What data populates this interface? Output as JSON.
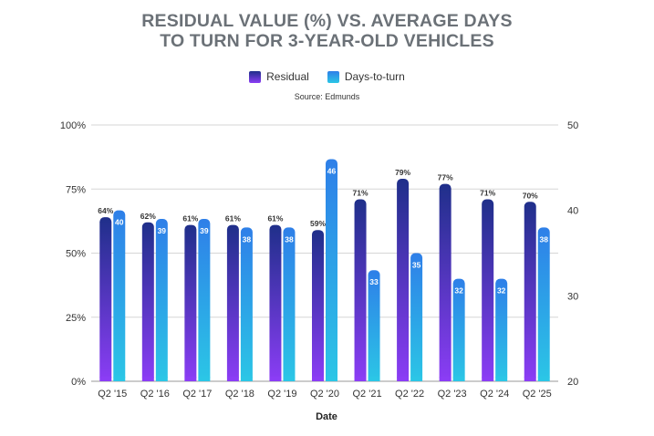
{
  "chart_data": {
    "type": "bar",
    "title_line1": "RESIDUAL VALUE (%) VS. AVERAGE DAYS",
    "title_line2": "TO TURN FOR 3-YEAR-OLD VEHICLES",
    "source": "Source: Edmunds",
    "xlabel": "Date",
    "categories": [
      "Q2 '15",
      "Q2 '16",
      "Q2 '17",
      "Q2 '18",
      "Q2 '19",
      "Q2 '20",
      "Q2 '21",
      "Q2 '22",
      "Q2 '23",
      "Q2 '24",
      "Q2 '25"
    ],
    "series": [
      {
        "name": "Residual",
        "axis": "left",
        "values": [
          64,
          62,
          61,
          61,
          61,
          59,
          71,
          79,
          77,
          71,
          70
        ],
        "labels": [
          "64%",
          "62%",
          "61%",
          "61%",
          "61%",
          "59%",
          "71%",
          "79%",
          "77%",
          "71%",
          "70%"
        ],
        "color_top": "#1f2f8a",
        "color_bottom": "#8b3df5"
      },
      {
        "name": "Days-to-turn",
        "axis": "right",
        "values": [
          40,
          39,
          39,
          38,
          38,
          46,
          33,
          35,
          32,
          32,
          38
        ],
        "labels": [
          "40",
          "39",
          "39",
          "38",
          "38",
          "46",
          "33",
          "35",
          "32",
          "32",
          "38"
        ],
        "color_top": "#2e7fe8",
        "color_bottom": "#2bc6e6"
      }
    ],
    "left_axis": {
      "ylim": [
        0,
        100
      ],
      "ticks": [
        "0%",
        "25%",
        "50%",
        "75%",
        "100%"
      ],
      "values": [
        0,
        25,
        50,
        75,
        100
      ]
    },
    "right_axis": {
      "ylim": [
        20,
        50
      ],
      "ticks": [
        "20",
        "30",
        "40",
        "50"
      ],
      "values": [
        20,
        30,
        40,
        50
      ]
    },
    "legend_position": "top-center",
    "grid": true
  }
}
